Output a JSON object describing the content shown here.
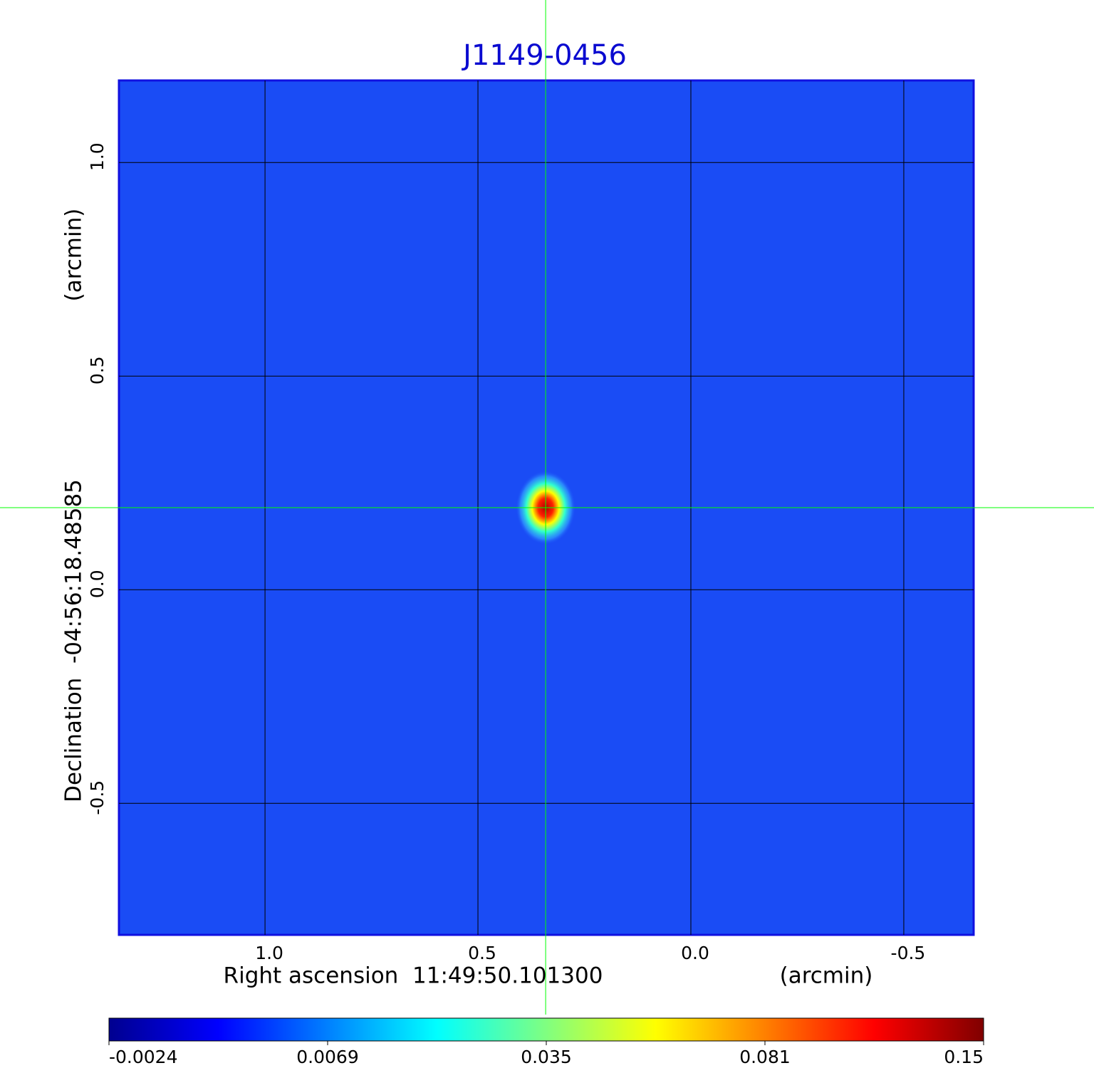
{
  "chart_data": {
    "type": "image",
    "title": "J1149-0456",
    "x_label": "Right ascension  11:49:50.101300",
    "x_unit": "(arcmin)",
    "y_label": "Declination  -04:56:18.48585",
    "y_unit": "(arcmin)",
    "xlim": [
      1.343,
      -0.664
    ],
    "ylim": [
      -0.808,
      1.192
    ],
    "xticks": [
      {
        "value": 1,
        "label": "1.0"
      },
      0.5,
      {
        "value": 0,
        "label": "0.0"
      },
      -0.5
    ],
    "yticks": [
      {
        "value": 1,
        "label": "1.0"
      },
      0.5,
      {
        "value": 0,
        "label": "0.0"
      },
      -0.5
    ],
    "grid": true,
    "crosshair": {
      "x": 0.341,
      "y": 0.192,
      "color": "#00ff00"
    },
    "colorbar": {
      "ticks": [
        -0.0024,
        0.0069,
        0.035,
        0.081,
        0.15
      ],
      "colors": [
        "#00008f",
        "#0000ff",
        "#0080ff",
        "#00ffff",
        "#80ff80",
        "#ffff00",
        "#ff8000",
        "#ff0000",
        "#800000"
      ]
    }
  }
}
